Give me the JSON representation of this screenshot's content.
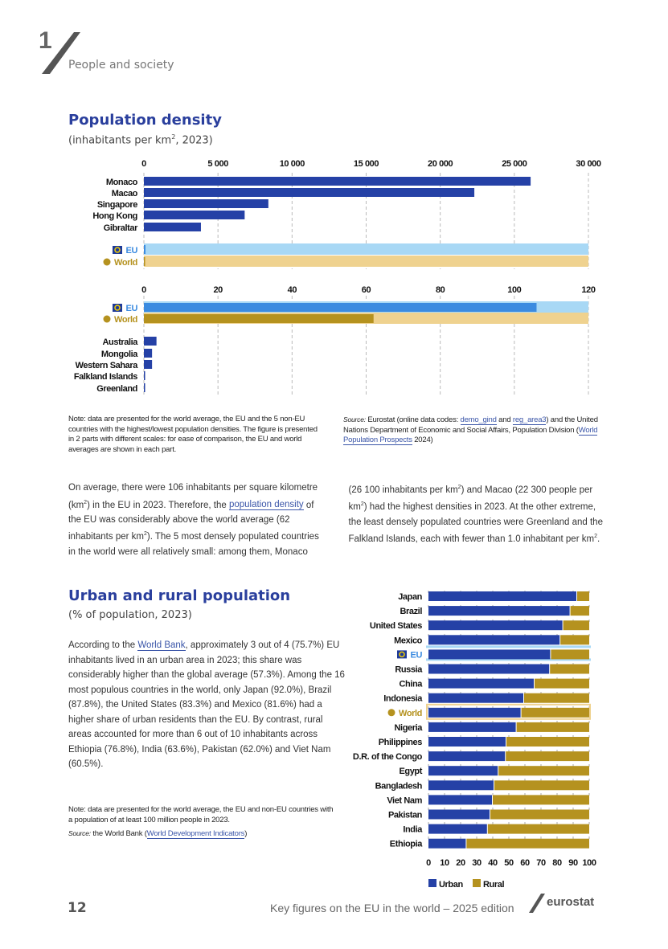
{
  "header": {
    "chapter_number": "1",
    "chapter_title": "People and society"
  },
  "density": {
    "title": "Population density",
    "subtitle_pre": "(inhabitants per km",
    "subtitle_sup": "2",
    "subtitle_post": ", 2023)",
    "note": "Note: data are presented for the world average, the EU and the 5 non-EU countries with the highest/lowest population densities. The figure is presented in 2 parts with different scales: for ease of comparison, the EU and world averages are shown in each part.",
    "source_label": "Source:",
    "source_pre": "Eurostat (online data codes: ",
    "link1": "demo_gind",
    "mid1": " and ",
    "link2": "reg_area3",
    "source_mid": ") and the United Nations Department of Economic and Social Affairs, Population Division (",
    "link3": "World Population Prospects",
    "source_post": " 2024)"
  },
  "text1": {
    "p1a": "On average, there were 106 inhabitants per square kilometre (km",
    "sup": "2",
    "p1b": ") in the EU in 2023. Therefore, the ",
    "link": "population density",
    "p1c": " of the EU was considerably above the world average (62 inhabitants per km",
    "p1d": "). The 5 most densely populated countries in the world were all relatively small: among them, Monaco (26 100 inhabitants per km",
    "p1e": ") and Macao (22 300 people per km",
    "p1f": ") had the highest densities in 2023. At the other extreme, the least densely populated countries were Greenland and the Falkland Islands, each with fewer than 1.0 inhabitant per km",
    "p1g": "."
  },
  "urban": {
    "title": "Urban and rural population",
    "subtitle": "(% of population, 2023)",
    "p_pre": "According to the ",
    "link": "World Bank",
    "p_post": ", approximately 3 out of 4 (75.7%) EU inhabitants lived in an urban area in 2023; this share was considerably higher than the global average (57.3%). Among the 16 most populous countries in the world, only Japan (92.0%), Brazil (87.8%), the United States (83.3%) and Mexico (81.6%) had a higher share of urban residents than the EU. By contrast, rural areas accounted for more than 6 out of 10 inhabitants across Ethiopia (76.8%), India (63.6%), Pakistan (62.0%) and Viet Nam (60.5%).",
    "note": "Note: data are presented for the world average, the EU and non-EU countries with a population of at least 100 million people in 2023.",
    "source_label": "Source:",
    "source_pre": " the World Bank (",
    "source_link": "World Development Indicators",
    "source_post": ")"
  },
  "footer": {
    "page": "12",
    "title": "Key figures on the EU in the world – 2025 edition",
    "logo": "eurostat"
  },
  "colors": {
    "blue": "#2541a6",
    "eu_light": "#a8d8f5",
    "eu_bar": "#3b8be0",
    "world_light": "#efd28f",
    "world_bar": "#b5921f",
    "rural": "#b5921f"
  },
  "chart_data": [
    {
      "type": "bar",
      "title": "Population density (part 1)",
      "xlim": [
        0,
        30000
      ],
      "ticks": [
        "0",
        "5 000",
        "10 000",
        "15 000",
        "20 000",
        "25 000",
        "30 000"
      ],
      "tick_values": [
        0,
        5000,
        10000,
        15000,
        20000,
        25000,
        30000
      ],
      "categories": [
        "Monaco",
        "Macao",
        "Singapore",
        "Hong Kong",
        "Gibraltar",
        "EU",
        "World"
      ],
      "values": [
        26100,
        22300,
        8400,
        6800,
        3850,
        106,
        62
      ]
    },
    {
      "type": "bar",
      "title": "Population density (part 2)",
      "xlim": [
        0,
        120
      ],
      "ticks": [
        "0",
        "20",
        "40",
        "60",
        "80",
        "100",
        "120"
      ],
      "tick_values": [
        0,
        20,
        40,
        60,
        80,
        100,
        120
      ],
      "categories": [
        "EU",
        "World",
        "Australia",
        "Mongolia",
        "Western Sahara",
        "Falkland Islands",
        "Greenland"
      ],
      "values": [
        106,
        62,
        3.4,
        2.2,
        2.2,
        0.3,
        0.1
      ]
    },
    {
      "type": "bar",
      "title": "Urban and rural population",
      "xlim": [
        0,
        100
      ],
      "ticks": [
        "0",
        "10",
        "20",
        "30",
        "40",
        "50",
        "60",
        "70",
        "80",
        "90",
        "100"
      ],
      "tick_values": [
        0,
        10,
        20,
        30,
        40,
        50,
        60,
        70,
        80,
        90,
        100
      ],
      "categories": [
        "Japan",
        "Brazil",
        "United States",
        "Mexico",
        "EU",
        "Russia",
        "China",
        "Indonesia",
        "World",
        "Nigeria",
        "Philippines",
        "D.R. of the Congo",
        "Egypt",
        "Bangladesh",
        "Viet Nam",
        "Pakistan",
        "India",
        "Ethiopia"
      ],
      "series": [
        {
          "name": "Urban",
          "values": [
            92.0,
            87.8,
            83.3,
            81.6,
            75.7,
            75.1,
            65.5,
            59.0,
            57.3,
            54.3,
            48.0,
            47.6,
            43.1,
            40.5,
            39.5,
            38.0,
            36.4,
            23.2
          ]
        },
        {
          "name": "Rural",
          "values": [
            8.0,
            12.2,
            16.7,
            18.4,
            24.3,
            24.9,
            34.5,
            41.0,
            42.7,
            45.7,
            52.0,
            52.4,
            56.9,
            59.5,
            60.5,
            62.0,
            63.6,
            76.8
          ]
        }
      ]
    }
  ]
}
